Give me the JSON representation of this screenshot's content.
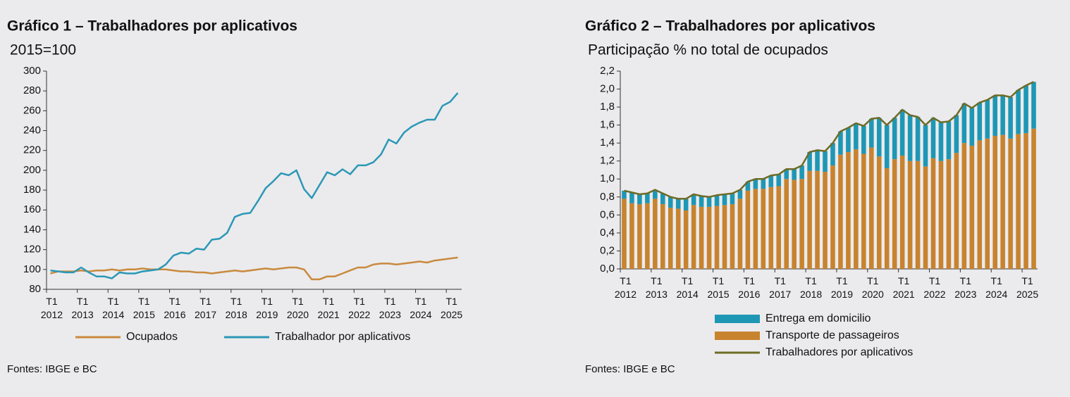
{
  "chart_data": [
    {
      "type": "line",
      "title": "Gráfico 1 – Trabalhadores por aplicativos",
      "subtitle": "2015=100",
      "source": "Fontes: IBGE e BC",
      "categories": [
        "T1 2012",
        null,
        null,
        null,
        "T1 2013",
        null,
        null,
        null,
        "T1 2014",
        null,
        null,
        null,
        "T1 2015",
        null,
        null,
        null,
        "T1 2016",
        null,
        null,
        null,
        "T1 2017",
        null,
        null,
        null,
        "T1 2018",
        null,
        null,
        null,
        "T1 2019",
        null,
        null,
        null,
        "T1 2020",
        null,
        null,
        null,
        "T1 2021",
        null,
        null,
        null,
        "T1 2022",
        null,
        null,
        null,
        "T1 2023",
        null,
        null,
        null,
        "T1 2024",
        null,
        null,
        null,
        "T1 2025",
        null
      ],
      "series": [
        {
          "name": "Ocupados",
          "color": "#c98a3e",
          "values": [
            96,
            98,
            98,
            98,
            99,
            98,
            99,
            99,
            100,
            99,
            100,
            100,
            101,
            100,
            100,
            100,
            99,
            98,
            98,
            97,
            97,
            96,
            97,
            98,
            99,
            98,
            99,
            100,
            101,
            100,
            101,
            102,
            102,
            100,
            90,
            90,
            93,
            93,
            96,
            99,
            102,
            102,
            105,
            106,
            106,
            105,
            106,
            107,
            108,
            107,
            109,
            110,
            111,
            112
          ]
        },
        {
          "name": "Trabalhador por aplicativos",
          "color": "#2b98b6",
          "values": [
            99,
            98,
            97,
            97,
            102,
            97,
            93,
            93,
            91,
            97,
            96,
            96,
            98,
            99,
            100,
            105,
            114,
            117,
            116,
            121,
            120,
            130,
            131,
            137,
            153,
            156,
            157,
            169,
            182,
            189,
            197,
            195,
            200,
            181,
            172,
            185,
            198,
            195,
            201,
            196,
            205,
            205,
            208,
            216,
            231,
            227,
            238,
            244,
            248,
            251,
            251,
            265,
            269,
            278
          ]
        }
      ],
      "ylim": [
        80,
        300
      ],
      "yticks": [
        80,
        100,
        120,
        140,
        160,
        180,
        200,
        220,
        240,
        260,
        280,
        300
      ],
      "grid": false,
      "legend": "bottom"
    },
    {
      "type": "bar",
      "stacked": true,
      "title": "Gráfico 2 – Trabalhadores por aplicativos",
      "subtitle": "Participação % no total de ocupados",
      "source": "Fontes: IBGE e BC",
      "categories": [
        "T1 2012",
        null,
        null,
        null,
        "T1 2013",
        null,
        null,
        null,
        "T1 2014",
        null,
        null,
        null,
        "T1 2015",
        null,
        null,
        null,
        "T1 2016",
        null,
        null,
        null,
        "T1 2017",
        null,
        null,
        null,
        "T1 2018",
        null,
        null,
        null,
        "T1 2019",
        null,
        null,
        null,
        "T1 2020",
        null,
        null,
        null,
        "T1 2021",
        null,
        null,
        null,
        "T1 2022",
        null,
        null,
        null,
        "T1 2023",
        null,
        null,
        null,
        "T1 2024",
        null,
        null,
        null,
        "T1 2025",
        null
      ],
      "series": [
        {
          "name": "Entrega em domicilio",
          "color": "#1e97b5",
          "values": [
            0.09,
            0.12,
            0.11,
            0.11,
            0.1,
            0.12,
            0.12,
            0.11,
            0.13,
            0.12,
            0.12,
            0.11,
            0.12,
            0.12,
            0.12,
            0.1,
            0.1,
            0.11,
            0.11,
            0.13,
            0.13,
            0.11,
            0.12,
            0.15,
            0.21,
            0.23,
            0.23,
            0.25,
            0.26,
            0.27,
            0.29,
            0.31,
            0.32,
            0.43,
            0.48,
            0.46,
            0.51,
            0.51,
            0.49,
            0.46,
            0.45,
            0.43,
            0.42,
            0.42,
            0.44,
            0.42,
            0.42,
            0.43,
            0.45,
            0.44,
            0.46,
            0.49,
            0.53,
            0.52
          ]
        },
        {
          "name": "Transporte de passageiros",
          "color": "#c8832e",
          "values": [
            0.78,
            0.73,
            0.72,
            0.73,
            0.78,
            0.72,
            0.68,
            0.67,
            0.65,
            0.71,
            0.69,
            0.69,
            0.7,
            0.71,
            0.72,
            0.78,
            0.87,
            0.89,
            0.89,
            0.91,
            0.92,
            1.0,
            0.99,
            1.0,
            1.09,
            1.09,
            1.08,
            1.15,
            1.27,
            1.3,
            1.33,
            1.28,
            1.35,
            1.25,
            1.12,
            1.22,
            1.26,
            1.2,
            1.2,
            1.14,
            1.23,
            1.2,
            1.22,
            1.29,
            1.4,
            1.37,
            1.43,
            1.45,
            1.48,
            1.49,
            1.45,
            1.5,
            1.51,
            1.56
          ]
        },
        {
          "name": "Trabalhadores por aplicativos",
          "color": "#6e6b26",
          "type": "line",
          "values": [
            0.87,
            0.85,
            0.83,
            0.84,
            0.88,
            0.84,
            0.8,
            0.78,
            0.78,
            0.83,
            0.81,
            0.8,
            0.82,
            0.83,
            0.84,
            0.88,
            0.97,
            1.0,
            1.0,
            1.04,
            1.05,
            1.11,
            1.11,
            1.15,
            1.3,
            1.32,
            1.31,
            1.4,
            1.53,
            1.57,
            1.62,
            1.59,
            1.67,
            1.68,
            1.6,
            1.68,
            1.77,
            1.71,
            1.69,
            1.6,
            1.68,
            1.63,
            1.64,
            1.71,
            1.84,
            1.79,
            1.85,
            1.88,
            1.93,
            1.93,
            1.91,
            1.99,
            2.04,
            2.08
          ]
        }
      ],
      "ylim": [
        0,
        2.2
      ],
      "yticks": [
        {
          "value": 0,
          "label": "0,0"
        },
        {
          "value": 0.2,
          "label": "0,2"
        },
        {
          "value": 0.4,
          "label": "0,4"
        },
        {
          "value": 0.6,
          "label": "0,6"
        },
        {
          "value": 0.8,
          "label": "0,8"
        },
        {
          "value": 1,
          "label": "1,0"
        },
        {
          "value": 1.2,
          "label": "1,2"
        },
        {
          "value": 1.4,
          "label": "1,4"
        },
        {
          "value": 1.6,
          "label": "1,6"
        },
        {
          "value": 1.8,
          "label": "1,8"
        },
        {
          "value": 2,
          "label": "2,0"
        },
        {
          "value": 2.2,
          "label": "2,2"
        }
      ],
      "grid": false,
      "legend": "bottom"
    }
  ]
}
